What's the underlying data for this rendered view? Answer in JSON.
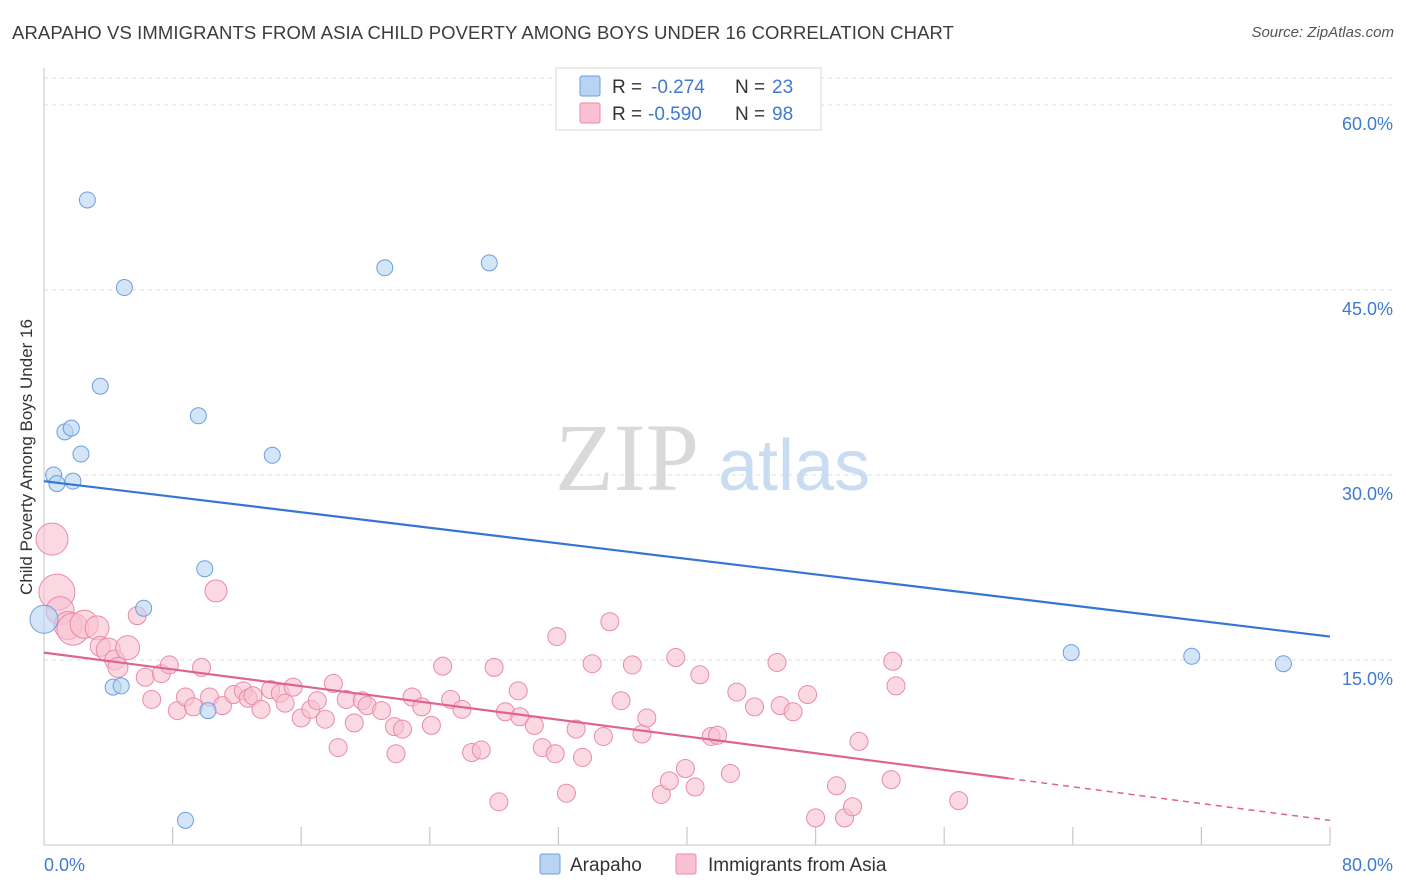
{
  "title": "ARAPAHO VS IMMIGRANTS FROM ASIA CHILD POVERTY AMONG BOYS UNDER 16 CORRELATION CHART",
  "source": "Source: ZipAtlas.com",
  "watermark": {
    "zip": "ZIP",
    "atlas": "atlas"
  },
  "colors": {
    "arapaho_fill": "#b9d3f3",
    "arapaho_stroke": "#6c9fdc",
    "arapaho_line": "#3575d3",
    "asia_fill": "#f8c0d0",
    "asia_stroke": "#e98ba8",
    "asia_line": "#e0628e",
    "tick": "#3f7ad0",
    "grid": "#dcdcdc"
  },
  "legend_top": {
    "rows": [
      {
        "r_label": "R =",
        "r_value": "-0.274",
        "n_label": "N =",
        "n_value": "23"
      },
      {
        "r_label": "R =",
        "r_value": "-0.590",
        "n_label": "N =",
        "n_value": "98"
      }
    ]
  },
  "legend_bottom": {
    "series1": "Arapaho",
    "series2": "Immigrants from Asia"
  },
  "chart_data": {
    "type": "scatter",
    "title": "ARAPAHO VS IMMIGRANTS FROM ASIA CHILD POVERTY AMONG BOYS UNDER 16 CORRELATION CHART",
    "xlabel": "",
    "ylabel": "Child Poverty Among Boys Under 16",
    "xlim": [
      0,
      80
    ],
    "ylim": [
      0,
      63
    ],
    "x_tick_labels": [
      "0.0%",
      "80.0%"
    ],
    "y_ticks": [
      15,
      30,
      45,
      60
    ],
    "y_tick_labels": [
      "15.0%",
      "30.0%",
      "45.0%",
      "60.0%"
    ],
    "grid": true,
    "series": [
      {
        "name": "Arapaho",
        "r": -0.274,
        "n": 23,
        "trend": {
          "x0": 0,
          "y0": 29.5,
          "x1": 80,
          "y1": 16.9
        },
        "points": [
          [
            0.0,
            18.3,
            14
          ],
          [
            0.6,
            30.0,
            8
          ],
          [
            0.8,
            29.3,
            8
          ],
          [
            1.3,
            33.5,
            8
          ],
          [
            1.7,
            33.8,
            8
          ],
          [
            1.8,
            29.5,
            8
          ],
          [
            2.3,
            31.7,
            8
          ],
          [
            2.7,
            52.3,
            8
          ],
          [
            3.5,
            37.2,
            8
          ],
          [
            4.3,
            12.8,
            8
          ],
          [
            4.8,
            12.9,
            8
          ],
          [
            5.0,
            45.2,
            8
          ],
          [
            6.2,
            19.2,
            8
          ],
          [
            8.8,
            2.0,
            8
          ],
          [
            9.6,
            34.8,
            8
          ],
          [
            10.0,
            22.4,
            8
          ],
          [
            10.2,
            10.9,
            8
          ],
          [
            14.2,
            31.6,
            8
          ],
          [
            21.2,
            46.8,
            8
          ],
          [
            27.7,
            47.2,
            8
          ],
          [
            63.9,
            15.6,
            8
          ],
          [
            71.4,
            15.3,
            8
          ],
          [
            77.1,
            14.7,
            8
          ]
        ]
      },
      {
        "name": "Immigrants from Asia",
        "r": -0.59,
        "n": 98,
        "trend": {
          "x0": 0,
          "y0": 15.6,
          "x1": 60,
          "y1": 5.4
        },
        "trend_dashed": {
          "x0": 60,
          "y0": 5.4,
          "x1": 80,
          "y1": 2.0
        },
        "points": [
          [
            0.5,
            24.8,
            16
          ],
          [
            0.8,
            20.5,
            18
          ],
          [
            1.0,
            19.0,
            14
          ],
          [
            1.5,
            17.8,
            14
          ],
          [
            1.8,
            17.5,
            16
          ],
          [
            2.5,
            17.9,
            14
          ],
          [
            3.3,
            17.6,
            12
          ],
          [
            3.5,
            16.1,
            10
          ],
          [
            4.0,
            15.8,
            12
          ],
          [
            4.4,
            15.0,
            10
          ],
          [
            4.6,
            14.4,
            10
          ],
          [
            5.2,
            16.0,
            12
          ],
          [
            5.8,
            18.6,
            9
          ],
          [
            6.3,
            13.6,
            9
          ],
          [
            6.7,
            11.8,
            9
          ],
          [
            7.3,
            13.9,
            9
          ],
          [
            7.8,
            14.6,
            9
          ],
          [
            8.3,
            10.9,
            9
          ],
          [
            8.8,
            12.0,
            9
          ],
          [
            9.3,
            11.2,
            9
          ],
          [
            9.8,
            14.4,
            9
          ],
          [
            10.3,
            12.0,
            9
          ],
          [
            10.7,
            20.6,
            11
          ],
          [
            11.1,
            11.3,
            9
          ],
          [
            11.8,
            12.2,
            9
          ],
          [
            12.4,
            12.5,
            9
          ],
          [
            12.7,
            11.9,
            9
          ],
          [
            13.0,
            12.1,
            9
          ],
          [
            13.5,
            11.0,
            9
          ],
          [
            14.1,
            12.6,
            9
          ],
          [
            14.7,
            12.3,
            9
          ],
          [
            15.0,
            11.5,
            9
          ],
          [
            15.5,
            12.8,
            9
          ],
          [
            16.0,
            10.3,
            9
          ],
          [
            16.6,
            11.0,
            9
          ],
          [
            17.0,
            11.7,
            9
          ],
          [
            17.5,
            10.2,
            9
          ],
          [
            18.0,
            13.1,
            9
          ],
          [
            18.8,
            11.8,
            9
          ],
          [
            19.3,
            9.9,
            9
          ],
          [
            19.8,
            11.7,
            9
          ],
          [
            20.1,
            11.3,
            9
          ],
          [
            21.0,
            10.9,
            9
          ],
          [
            21.8,
            9.6,
            9
          ],
          [
            22.3,
            9.4,
            9
          ],
          [
            22.9,
            12.0,
            9
          ],
          [
            23.5,
            11.2,
            9
          ],
          [
            24.1,
            9.7,
            9
          ],
          [
            24.8,
            14.5,
            9
          ],
          [
            25.3,
            11.8,
            9
          ],
          [
            26.0,
            11.0,
            9
          ],
          [
            26.6,
            7.5,
            9
          ],
          [
            27.2,
            7.7,
            9
          ],
          [
            28.0,
            14.4,
            9
          ],
          [
            28.7,
            10.8,
            9
          ],
          [
            29.5,
            12.5,
            9
          ],
          [
            29.6,
            10.4,
            9
          ],
          [
            30.5,
            9.7,
            9
          ],
          [
            31.0,
            7.9,
            9
          ],
          [
            31.8,
            7.4,
            9
          ],
          [
            32.5,
            4.2,
            9
          ],
          [
            33.1,
            9.4,
            9
          ],
          [
            33.5,
            7.1,
            9
          ],
          [
            34.1,
            14.7,
            9
          ],
          [
            34.8,
            8.8,
            9
          ],
          [
            35.2,
            18.1,
            9
          ],
          [
            35.9,
            11.7,
            9
          ],
          [
            36.6,
            14.6,
            9
          ],
          [
            37.2,
            9.0,
            9
          ],
          [
            37.5,
            10.3,
            9
          ],
          [
            38.4,
            4.1,
            9
          ],
          [
            38.9,
            5.2,
            9
          ],
          [
            39.3,
            15.2,
            9
          ],
          [
            39.9,
            6.2,
            9
          ],
          [
            40.5,
            4.7,
            9
          ],
          [
            40.8,
            13.8,
            9
          ],
          [
            41.5,
            8.8,
            9
          ],
          [
            41.9,
            8.9,
            9
          ],
          [
            42.7,
            5.8,
            9
          ],
          [
            43.1,
            12.4,
            9
          ],
          [
            44.2,
            11.2,
            9
          ],
          [
            45.6,
            14.8,
            9
          ],
          [
            45.8,
            11.3,
            9
          ],
          [
            46.6,
            10.8,
            9
          ],
          [
            47.5,
            12.2,
            9
          ],
          [
            48.0,
            2.2,
            9
          ],
          [
            49.3,
            4.8,
            9
          ],
          [
            49.8,
            2.2,
            9
          ],
          [
            50.3,
            3.1,
            9
          ],
          [
            50.7,
            8.4,
            9
          ],
          [
            52.7,
            5.3,
            9
          ],
          [
            52.8,
            14.9,
            9
          ],
          [
            53.0,
            12.9,
            9
          ],
          [
            56.9,
            3.6,
            9
          ],
          [
            28.3,
            3.5,
            9
          ],
          [
            31.9,
            16.9,
            9
          ],
          [
            18.3,
            7.9,
            9
          ],
          [
            21.9,
            7.4,
            9
          ]
        ]
      }
    ]
  }
}
